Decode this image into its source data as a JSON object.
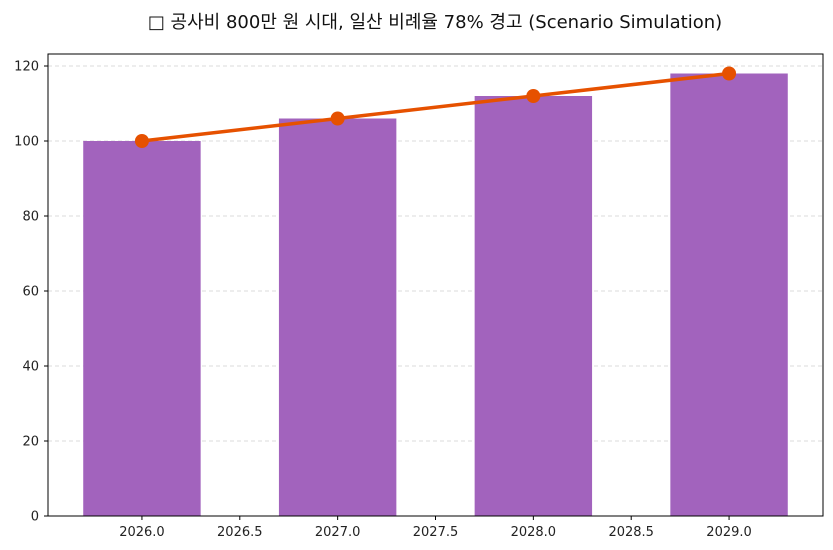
{
  "chart_data": {
    "type": "bar+line",
    "title": "□ 공사비 800만 원 시대, 일산 비례율 78% 경고 (Scenario Simulation)",
    "xlabel": "",
    "ylabel": "",
    "x": [
      2026,
      2027,
      2028,
      2029
    ],
    "bar_values": [
      100,
      106,
      112,
      118
    ],
    "line_values": [
      100,
      106,
      112,
      118
    ],
    "xlim": [
      2025.52,
      2029.48
    ],
    "ylim": [
      0,
      123.2
    ],
    "xticks": [
      "2026.0",
      "2026.5",
      "2027.0",
      "2027.5",
      "2028.0",
      "2028.5",
      "2029.0"
    ],
    "yticks": [
      "0",
      "20",
      "40",
      "60",
      "80",
      "100",
      "120"
    ],
    "grid": "y-dashed",
    "colors": {
      "bar": "#a263bd",
      "line": "#e65100",
      "grid": "#d0d0d0"
    }
  }
}
